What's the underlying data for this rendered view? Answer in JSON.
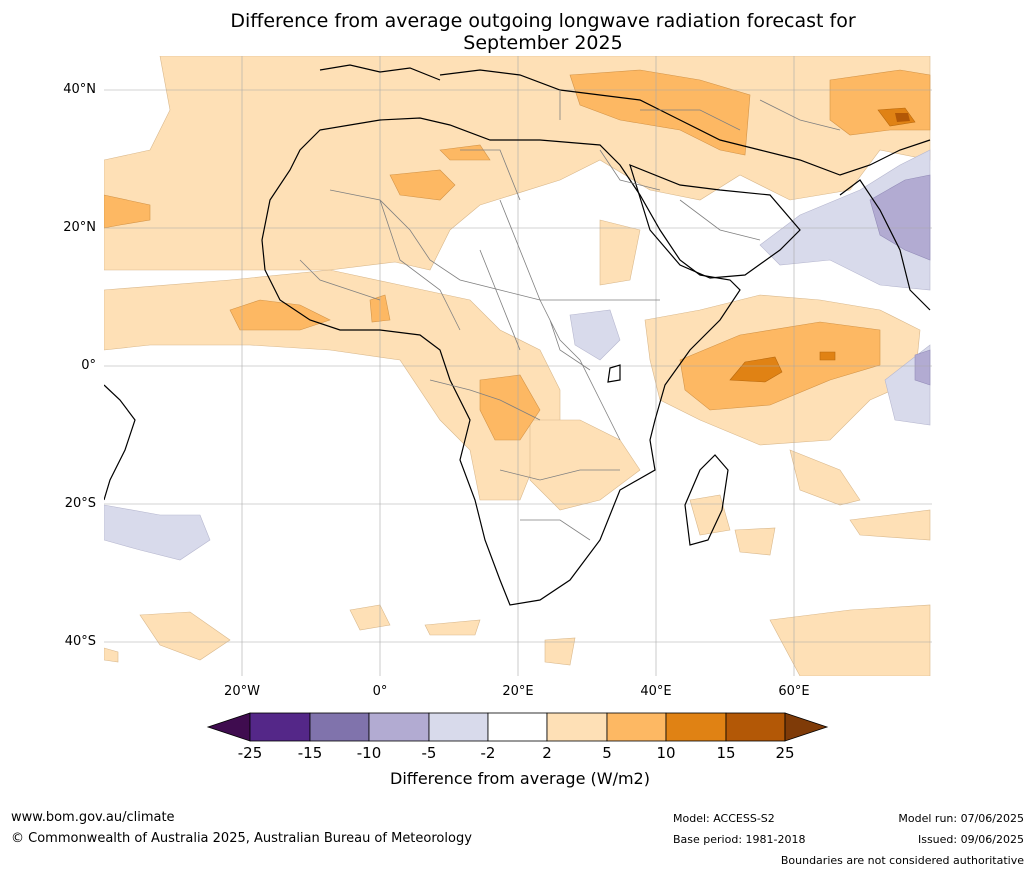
{
  "title_line1": "Difference from average outgoing longwave radiation forecast for",
  "title_line2": "September 2025",
  "lat_labels": [
    "40°N",
    "20°N",
    "0°",
    "20°S",
    "40°S"
  ],
  "lon_labels": [
    "20°W",
    "0°",
    "20°E",
    "40°E",
    "60°E"
  ],
  "colorbar": {
    "title": "Difference from average (W/m2)",
    "ticks": [
      "-25",
      "-15",
      "-10",
      "-5",
      "-2",
      "2",
      "5",
      "10",
      "15",
      "25"
    ],
    "colors": [
      "#3f0c4f",
      "#542788",
      "#8073ac",
      "#b2abd2",
      "#d8daeb",
      "#ffffff",
      "#fee0b6",
      "#fdb863",
      "#e08214",
      "#b35806",
      "#7f3b08"
    ]
  },
  "footer": {
    "url": "www.bom.gov.au/climate",
    "copyright": "© Commonwealth of Australia 2025, Australian Bureau of Meteorology",
    "model": "Model: ACCESS-S2",
    "base_period": "Base period: 1981-2018",
    "model_run": "Model run: 07/06/2025",
    "issued": "Issued: 09/06/2025",
    "disclaimer": "Boundaries are not considered authoritative"
  }
}
